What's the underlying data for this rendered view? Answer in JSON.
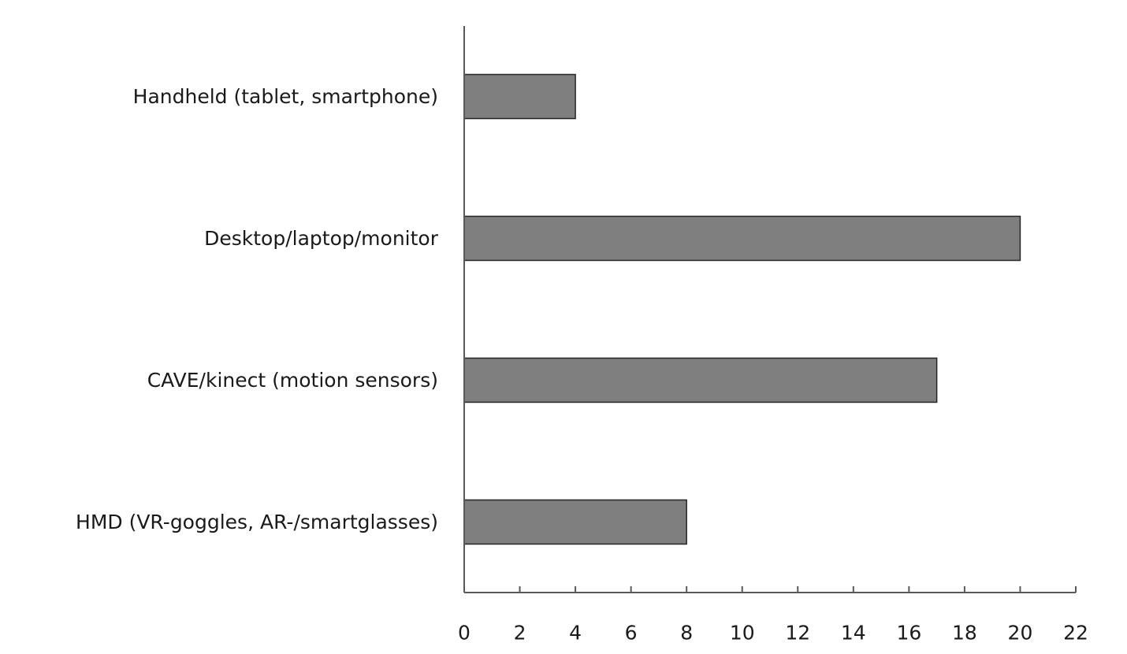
{
  "chart_data": {
    "type": "bar",
    "orientation": "horizontal",
    "categories": [
      "Handheld (tablet, smartphone)",
      "Desktop/laptop/monitor",
      "CAVE/kinect (motion sensors)",
      "HMD (VR-goggles, AR-/smartglasses)"
    ],
    "values": [
      4,
      20,
      17,
      8
    ],
    "xlim": [
      0,
      22
    ],
    "xticks": [
      "0",
      "2",
      "4",
      "6",
      "8",
      "10",
      "12",
      "14",
      "16",
      "18",
      "20",
      "22"
    ],
    "title": "",
    "xlabel": "",
    "ylabel": "",
    "grid": false,
    "legend": "none",
    "colors": {
      "bar_fill": "#7f7f7f",
      "bar_stroke": "#262626",
      "axis": "#595959",
      "text": "#1a1a1a"
    }
  }
}
